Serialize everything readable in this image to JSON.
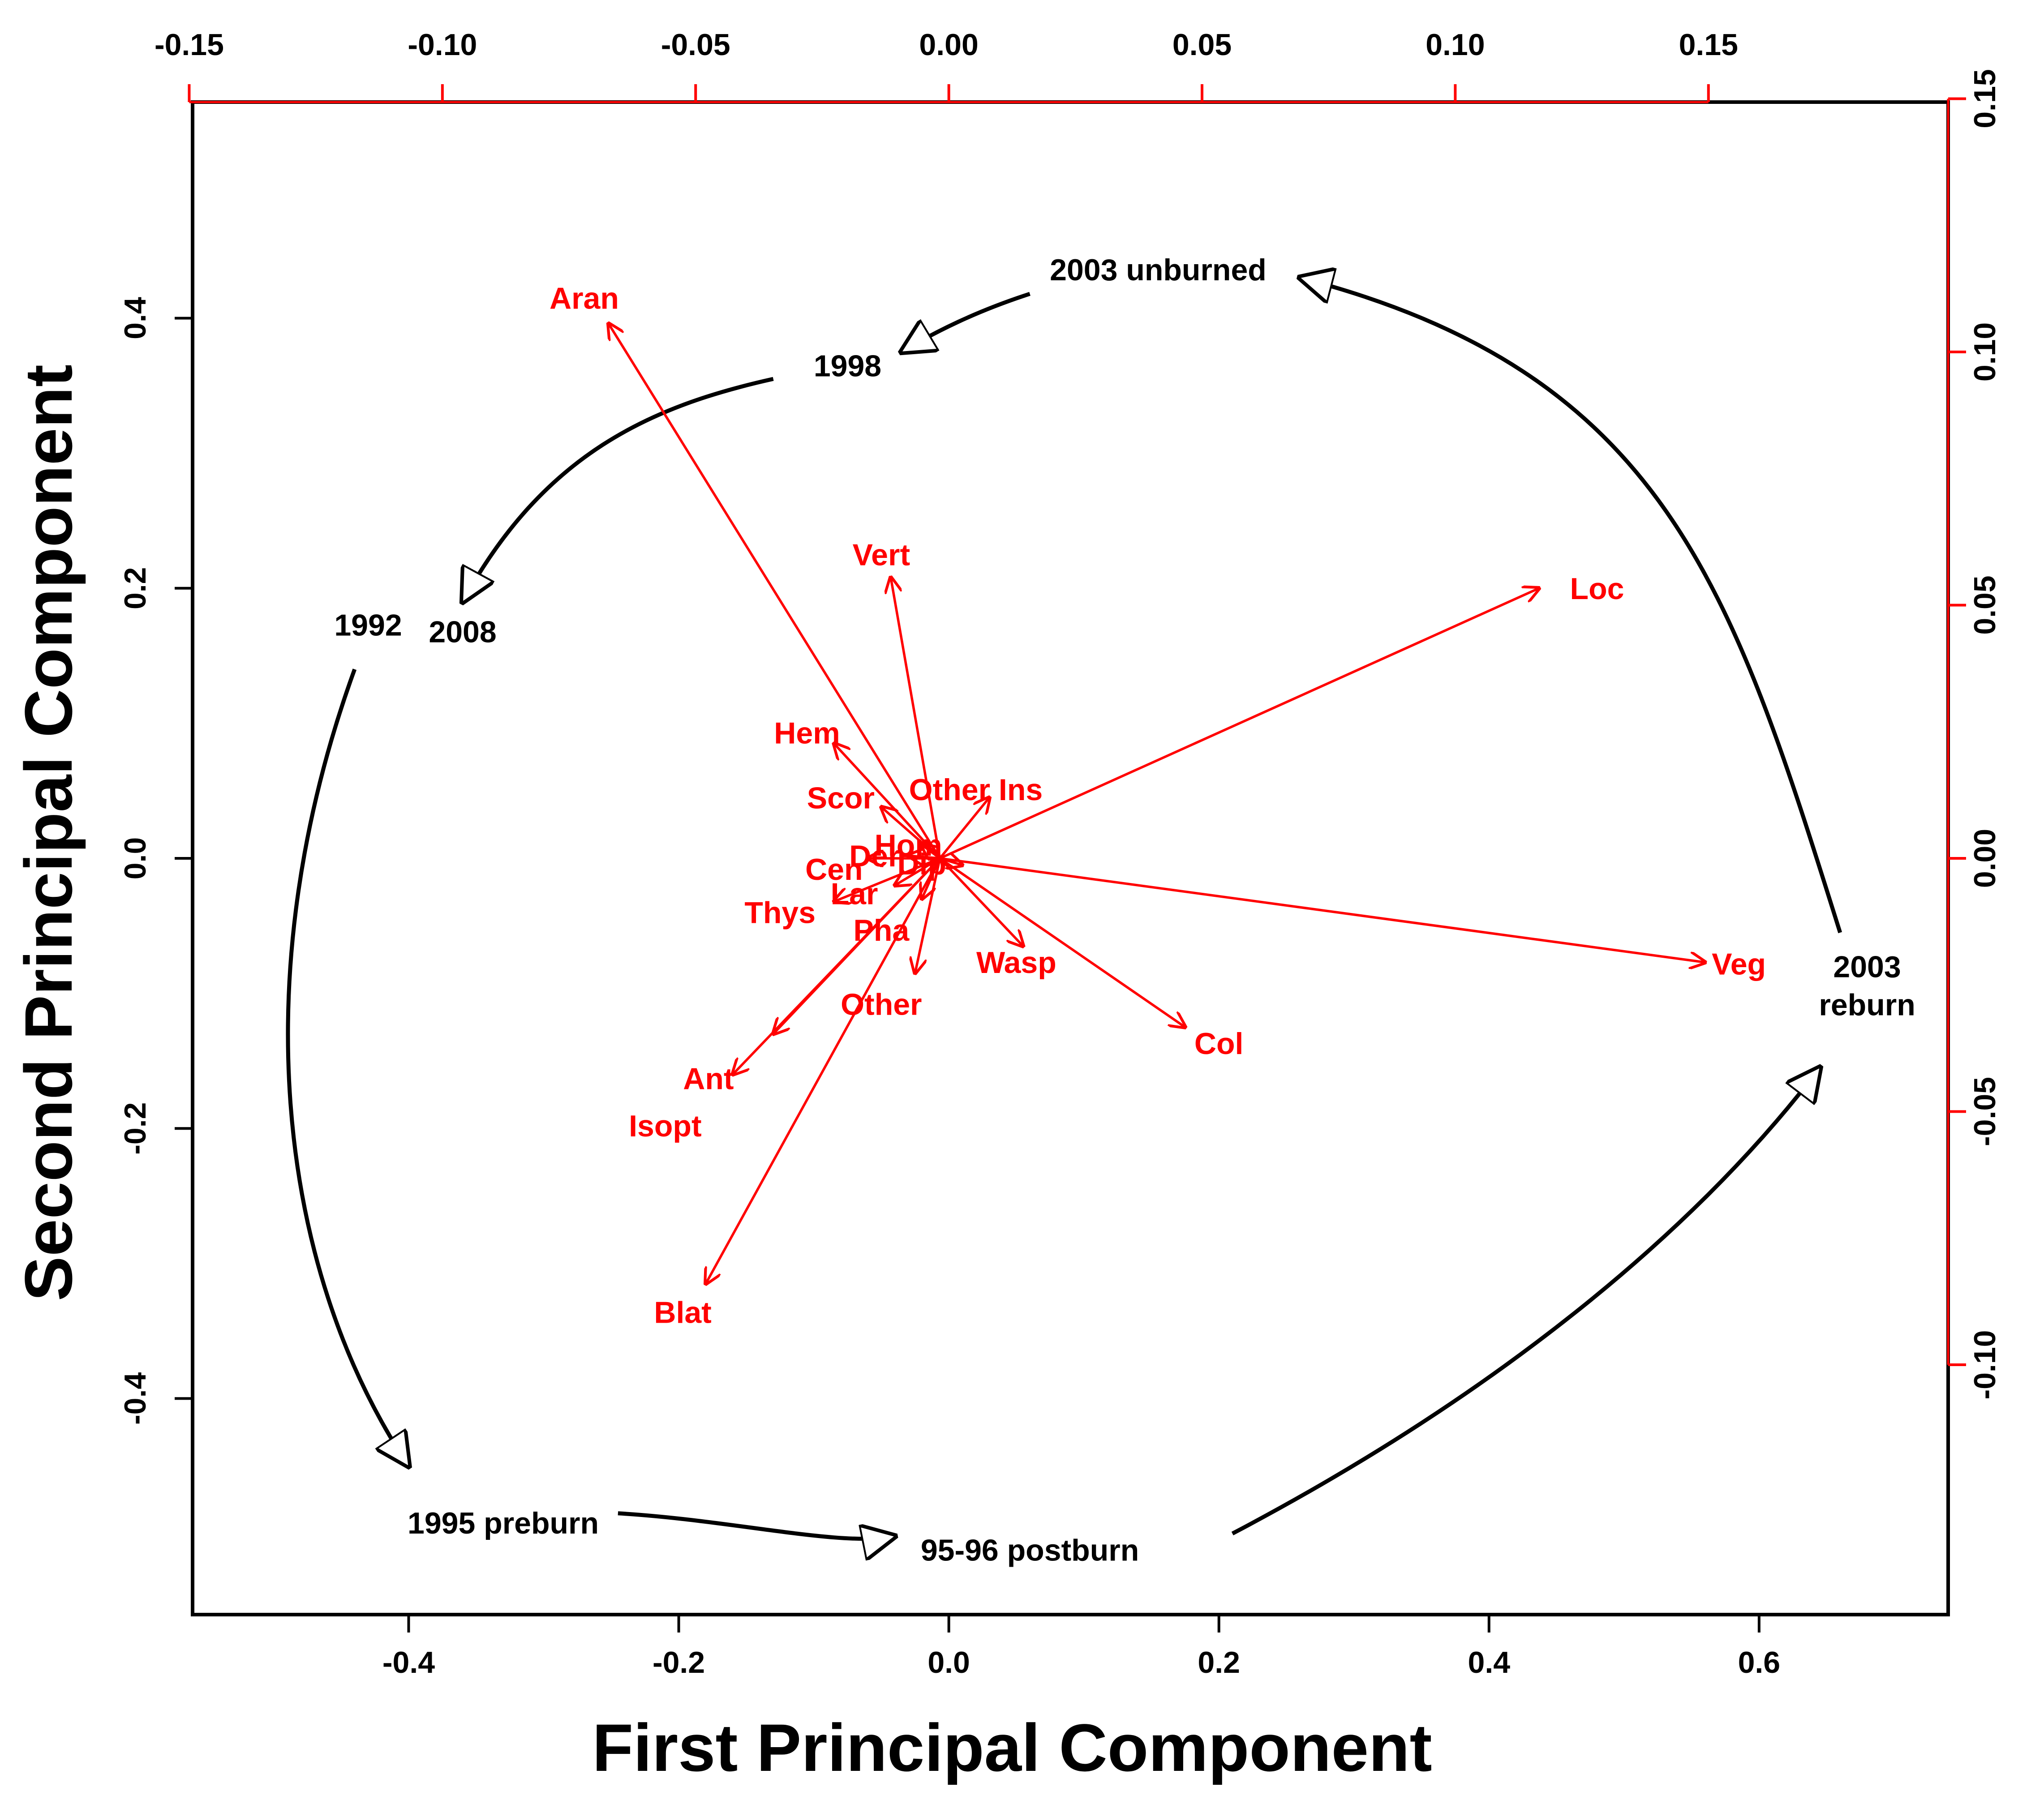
{
  "chart_data": {
    "type": "scatter",
    "subtype": "pca-biplot",
    "xlabel": "First Principal Component",
    "ylabel": "Second Principal Component",
    "xlim": [
      -0.56,
      0.74
    ],
    "ylim": [
      -0.56,
      0.56
    ],
    "x_ticks": [
      "-0.4",
      "-0.2",
      "0.0",
      "0.2",
      "0.4",
      "0.6"
    ],
    "y_ticks": [
      "-0.4",
      "-0.2",
      "0.0",
      "0.2",
      "0.4"
    ],
    "x_tick_values": [
      -0.4,
      -0.2,
      0.0,
      0.2,
      0.4,
      0.6
    ],
    "y_tick_values": [
      -0.4,
      -0.2,
      0.0,
      0.2,
      0.4
    ],
    "top_axis": {
      "color": "#ff0000",
      "ticks": [
        "-0.15",
        "-0.10",
        "-0.05",
        "0.00",
        "0.05",
        "0.10",
        "0.15"
      ],
      "tick_values": [
        -0.15,
        -0.1,
        -0.05,
        0.0,
        0.05,
        0.1,
        0.15
      ]
    },
    "right_axis": {
      "color": "#ff0000",
      "ticks": [
        "-0.10",
        "-0.05",
        "0.00",
        "0.05",
        "0.10",
        "0.15"
      ],
      "tick_values": [
        -0.1,
        -0.05,
        0.0,
        0.05,
        0.1,
        0.15
      ]
    },
    "loading_color": "#ff0000",
    "loadings": [
      {
        "label": "Aran",
        "x": -0.252,
        "y": 0.396,
        "lx": -0.27,
        "ly": 0.415
      },
      {
        "label": "Vert",
        "x": -0.043,
        "y": 0.208,
        "lx": -0.05,
        "ly": 0.225
      },
      {
        "label": "Loc",
        "x": 0.437,
        "y": 0.2,
        "lx": 0.48,
        "ly": 0.2
      },
      {
        "label": "Veg",
        "x": 0.56,
        "y": -0.077,
        "lx": 0.585,
        "ly": -0.078
      },
      {
        "label": "Hem",
        "x": -0.085,
        "y": 0.085,
        "lx": -0.105,
        "ly": 0.093
      },
      {
        "label": "Scor",
        "x": -0.05,
        "y": 0.038,
        "lx": -0.08,
        "ly": 0.045
      },
      {
        "label": "Other Ins",
        "x": 0.03,
        "y": 0.045,
        "lx": 0.02,
        "ly": 0.051
      },
      {
        "label": "Cen",
        "x": -0.06,
        "y": 0.0,
        "lx": -0.085,
        "ly": -0.008
      },
      {
        "label": "Lar",
        "x": -0.04,
        "y": -0.02,
        "lx": -0.07,
        "ly": -0.026
      },
      {
        "label": "Thys",
        "x": -0.085,
        "y": -0.032,
        "lx": -0.125,
        "ly": -0.04
      },
      {
        "label": "Pha",
        "x": -0.02,
        "y": -0.03,
        "lx": -0.05,
        "ly": -0.053
      },
      {
        "label": "Wasp",
        "x": 0.055,
        "y": -0.065,
        "lx": 0.05,
        "ly": -0.077
      },
      {
        "label": "Col",
        "x": 0.175,
        "y": -0.125,
        "lx": 0.2,
        "ly": -0.137
      },
      {
        "label": "Other",
        "x": -0.025,
        "y": -0.085,
        "lx": -0.05,
        "ly": -0.108
      },
      {
        "label": "Ant",
        "x": -0.16,
        "y": -0.16,
        "lx": -0.178,
        "ly": -0.163
      },
      {
        "label": "Isopt",
        "x": -0.13,
        "y": -0.13,
        "lx": -0.21,
        "ly": -0.198
      },
      {
        "label": "Blat",
        "x": -0.18,
        "y": -0.315,
        "lx": -0.197,
        "ly": -0.336
      },
      {
        "label": "Hom",
        "x": -0.02,
        "y": 0.01,
        "lx": -0.03,
        "ly": 0.01
      },
      {
        "label": "Der",
        "x": -0.03,
        "y": 0.002,
        "lx": -0.055,
        "ly": 0.002
      },
      {
        "label": "Dip",
        "x": 0.01,
        "y": -0.005,
        "lx": -0.02,
        "ly": -0.004
      }
    ],
    "trajectory": [
      {
        "label": "1992",
        "x": -0.43,
        "y": 0.165
      },
      {
        "label": "1995 preburn",
        "x": -0.33,
        "y": -0.5
      },
      {
        "label": "95-96 postburn",
        "x": 0.06,
        "y": -0.52
      },
      {
        "label": "2003",
        "label2": "reburn",
        "x": 0.68,
        "y": -0.088
      },
      {
        "label": "2003 unburned",
        "x": 0.155,
        "y": 0.428
      },
      {
        "label": "1998",
        "x": -0.075,
        "y": 0.357
      },
      {
        "label": "2008",
        "x": -0.36,
        "y": 0.16
      }
    ],
    "grid": false,
    "legend": "none"
  }
}
